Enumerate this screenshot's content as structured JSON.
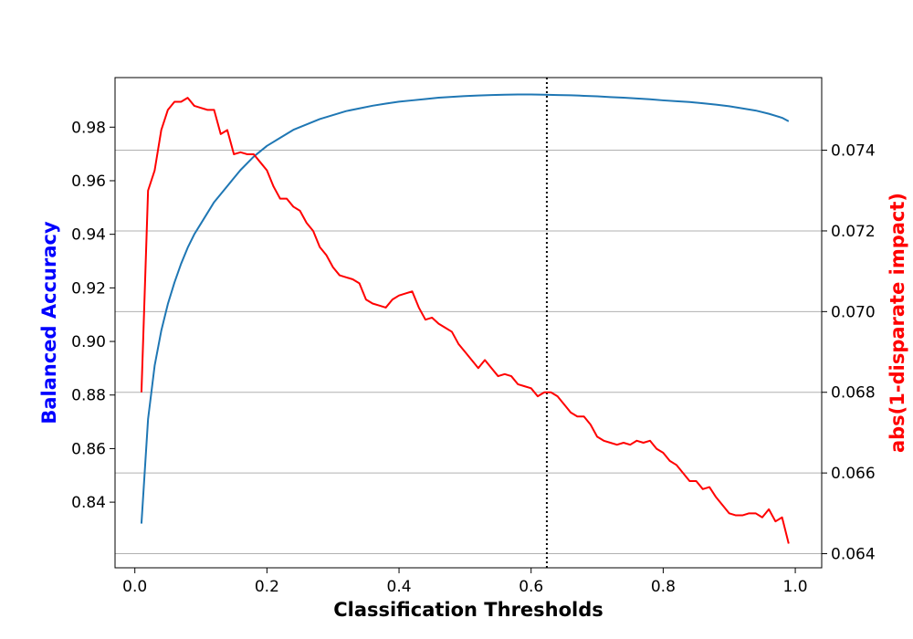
{
  "chart_data": {
    "type": "line",
    "xlabel": "Classification Thresholds",
    "ylabel_left": "Balanced Accuracy",
    "ylabel_right": "abs(1-disparate impact)",
    "colors": {
      "left_label": "#0000ff",
      "right_label": "#ff0000",
      "left_series": "#1f77b4",
      "right_series": "#ff0000",
      "vline": "#000000",
      "grid": "#b0b0b0"
    },
    "xlim": [
      -0.03,
      1.04
    ],
    "ylim_left": [
      0.8155,
      0.9985
    ],
    "ylim_right": [
      0.06365,
      0.0758
    ],
    "x_ticks": [
      0.0,
      0.2,
      0.4,
      0.6,
      0.8,
      1.0
    ],
    "x_tick_labels": [
      "0.0",
      "0.2",
      "0.4",
      "0.6",
      "0.8",
      "1.0"
    ],
    "y_left_ticks": [
      0.84,
      0.86,
      0.88,
      0.9,
      0.92,
      0.94,
      0.96,
      0.98
    ],
    "y_left_tick_labels": [
      "0.84",
      "0.86",
      "0.88",
      "0.90",
      "0.92",
      "0.94",
      "0.96",
      "0.98"
    ],
    "y_right_ticks": [
      0.064,
      0.066,
      0.068,
      0.07,
      0.072,
      0.074
    ],
    "y_right_tick_labels": [
      "0.064",
      "0.066",
      "0.068",
      "0.070",
      "0.072",
      "0.074"
    ],
    "grid": "right-axis horizontal",
    "vline_x": 0.6238,
    "series": [
      {
        "axis": "left",
        "x": [
          0.01,
          0.02,
          0.03,
          0.04,
          0.05,
          0.06,
          0.07,
          0.08,
          0.09,
          0.1,
          0.12,
          0.14,
          0.16,
          0.18,
          0.2,
          0.22,
          0.24,
          0.26,
          0.28,
          0.3,
          0.32,
          0.34,
          0.36,
          0.38,
          0.4,
          0.42,
          0.44,
          0.46,
          0.48,
          0.5,
          0.52,
          0.54,
          0.56,
          0.58,
          0.6,
          0.62,
          0.64,
          0.66,
          0.68,
          0.7,
          0.72,
          0.74,
          0.76,
          0.78,
          0.8,
          0.82,
          0.84,
          0.86,
          0.88,
          0.9,
          0.92,
          0.94,
          0.96,
          0.98,
          0.99
        ],
        "values": [
          0.832,
          0.871,
          0.891,
          0.904,
          0.914,
          0.922,
          0.929,
          0.935,
          0.94,
          0.944,
          0.952,
          0.958,
          0.964,
          0.969,
          0.973,
          0.976,
          0.979,
          0.981,
          0.983,
          0.9845,
          0.986,
          0.987,
          0.988,
          0.9888,
          0.9895,
          0.99,
          0.9905,
          0.991,
          0.9913,
          0.9916,
          0.9918,
          0.992,
          0.9921,
          0.9922,
          0.9922,
          0.9921,
          0.992,
          0.9919,
          0.9917,
          0.9915,
          0.9912,
          0.991,
          0.9907,
          0.9904,
          0.99,
          0.9897,
          0.9894,
          0.9889,
          0.9884,
          0.9878,
          0.987,
          0.9862,
          0.985,
          0.9835,
          0.9822
        ]
      },
      {
        "axis": "right",
        "x": [
          0.01,
          0.02,
          0.03,
          0.04,
          0.05,
          0.06,
          0.07,
          0.08,
          0.09,
          0.1,
          0.11,
          0.12,
          0.13,
          0.14,
          0.15,
          0.16,
          0.17,
          0.18,
          0.19,
          0.2,
          0.21,
          0.22,
          0.23,
          0.24,
          0.25,
          0.26,
          0.27,
          0.28,
          0.29,
          0.3,
          0.31,
          0.32,
          0.33,
          0.34,
          0.35,
          0.36,
          0.37,
          0.38,
          0.39,
          0.4,
          0.41,
          0.42,
          0.43,
          0.44,
          0.45,
          0.46,
          0.47,
          0.48,
          0.49,
          0.5,
          0.51,
          0.52,
          0.53,
          0.54,
          0.55,
          0.56,
          0.57,
          0.58,
          0.59,
          0.6,
          0.61,
          0.62,
          0.63,
          0.64,
          0.65,
          0.66,
          0.67,
          0.68,
          0.69,
          0.7,
          0.71,
          0.72,
          0.73,
          0.74,
          0.75,
          0.76,
          0.77,
          0.78,
          0.79,
          0.8,
          0.81,
          0.82,
          0.83,
          0.84,
          0.85,
          0.86,
          0.87,
          0.88,
          0.89,
          0.9,
          0.91,
          0.92,
          0.93,
          0.94,
          0.95,
          0.96,
          0.97,
          0.98,
          0.99
        ],
        "values": [
          0.068,
          0.073,
          0.0735,
          0.0745,
          0.075,
          0.0752,
          0.0752,
          0.0753,
          0.0751,
          0.07505,
          0.075,
          0.075,
          0.0744,
          0.0745,
          0.0739,
          0.07395,
          0.0739,
          0.0739,
          0.0737,
          0.0735,
          0.0731,
          0.0728,
          0.0728,
          0.0726,
          0.0725,
          0.0722,
          0.072,
          0.0716,
          0.0714,
          0.0711,
          0.0709,
          0.07085,
          0.0708,
          0.0707,
          0.0703,
          0.0702,
          0.07015,
          0.0701,
          0.0703,
          0.0704,
          0.07045,
          0.0705,
          0.0701,
          0.0698,
          0.06985,
          0.0697,
          0.0696,
          0.0695,
          0.0692,
          0.069,
          0.0688,
          0.0686,
          0.0688,
          0.0686,
          0.0684,
          0.06845,
          0.0684,
          0.0682,
          0.06815,
          0.0681,
          0.0679,
          0.068,
          0.068,
          0.0679,
          0.0677,
          0.0675,
          0.0674,
          0.0674,
          0.0672,
          0.0669,
          0.0668,
          0.06675,
          0.0667,
          0.06675,
          0.0667,
          0.0668,
          0.06675,
          0.0668,
          0.0666,
          0.0665,
          0.0663,
          0.0662,
          0.066,
          0.0658,
          0.0658,
          0.0656,
          0.06565,
          0.0654,
          0.0652,
          0.065,
          0.06495,
          0.06495,
          0.065,
          0.065,
          0.0649,
          0.0651,
          0.0648,
          0.0649,
          0.06425
        ]
      }
    ]
  }
}
